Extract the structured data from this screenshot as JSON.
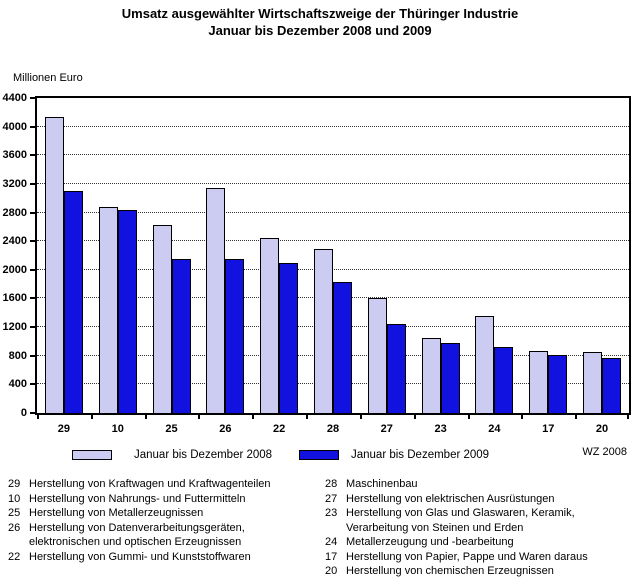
{
  "title": {
    "line1": "Umsatz ausgewählter Wirtschaftszweige der Thüringer Industrie",
    "line2": "Januar bis Dezember 2008 und 2009"
  },
  "y_axis_label": "Millionen Euro",
  "legend": {
    "items": [
      {
        "label": "Januar bis Dezember 2008",
        "color": "#CCCCF2"
      },
      {
        "label": "Januar bis Dezember 2009",
        "color": "#1111E0"
      }
    ],
    "note": "WZ 2008"
  },
  "colors": {
    "bar_2008": "#CCCCF2",
    "bar_2009": "#1111E0",
    "axis": "#000000",
    "gridline": "#333333"
  },
  "chart_data": {
    "type": "bar",
    "title": "Umsatz ausgewählter Wirtschaftszweige der Thüringer Industrie Januar bis Dezember 2008 und 2009",
    "xlabel": "",
    "ylabel": "Millionen Euro",
    "ylim": [
      0,
      4400
    ],
    "ytick_step": 400,
    "grid": "horizontal-dotted",
    "legend_position": "bottom",
    "categories": [
      "29",
      "10",
      "25",
      "26",
      "22",
      "28",
      "27",
      "23",
      "24",
      "17",
      "20"
    ],
    "series": [
      {
        "name": "Januar bis Dezember 2008",
        "color": "#CCCCF2",
        "values": [
          4130,
          2880,
          2620,
          3150,
          2440,
          2290,
          1600,
          1050,
          1350,
          860,
          850
        ]
      },
      {
        "name": "Januar bis Dezember 2009",
        "color": "#1111E0",
        "values": [
          3100,
          2830,
          2150,
          2150,
          2100,
          1830,
          1240,
          980,
          920,
          810,
          770
        ]
      }
    ]
  },
  "footnotes": {
    "left": [
      {
        "code": "29",
        "lines": [
          "Herstellung von Kraftwagen und Kraftwagenteilen"
        ]
      },
      {
        "code": "10",
        "lines": [
          "Herstellung von Nahrungs- und Futtermitteln"
        ]
      },
      {
        "code": "25",
        "lines": [
          "Herstellung von Metallerzeugnissen"
        ]
      },
      {
        "code": "26",
        "lines": [
          "Herstellung von Datenverarbeitungsgeräten,",
          "elektronischen und optischen Erzeugnissen"
        ]
      },
      {
        "code": "22",
        "lines": [
          "Herstellung von Gummi- und  Kunststoffwaren"
        ]
      }
    ],
    "right": [
      {
        "code": "28",
        "lines": [
          "Maschinenbau"
        ]
      },
      {
        "code": "27",
        "lines": [
          "Herstellung von elektrischen Ausrüstungen"
        ]
      },
      {
        "code": "23",
        "lines": [
          "Herstellung von Glas und Glaswaren, Keramik,",
          "Verarbeitung von Steinen und Erden"
        ]
      },
      {
        "code": "24",
        "lines": [
          "Metallerzeugung und -bearbeitung"
        ]
      },
      {
        "code": "17",
        "lines": [
          "Herstellung von Papier, Pappe und Waren daraus"
        ]
      },
      {
        "code": "20",
        "lines": [
          "Herstellung von chemischen Erzeugnissen"
        ]
      }
    ]
  }
}
